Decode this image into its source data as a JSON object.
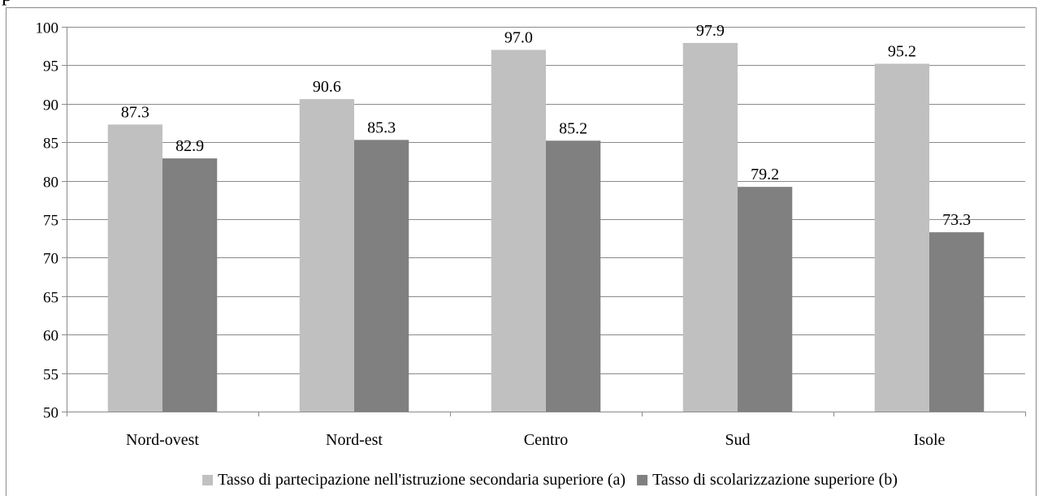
{
  "top_clipped_text": "р",
  "chart_data": {
    "type": "bar",
    "categories": [
      "Nord-ovest",
      "Nord-est",
      "Centro",
      "Sud",
      "Isole"
    ],
    "series": [
      {
        "name": "Tasso di partecipazione nell'istruzione secondaria superiore (a)",
        "values": [
          87.3,
          90.6,
          97.0,
          97.9,
          95.2
        ],
        "labels": [
          "87.3",
          "90.6",
          "97.0",
          "97.9",
          "95.2"
        ],
        "color": "#c0c0c0"
      },
      {
        "name": "Tasso di scolarizzazione superiore (b)",
        "values": [
          82.9,
          85.3,
          85.2,
          79.2,
          73.3
        ],
        "labels": [
          "82.9",
          "85.3",
          "85.2",
          "79.2",
          "73.3"
        ],
        "color": "#808080"
      }
    ],
    "yticks": [
      "50",
      "55",
      "60",
      "65",
      "70",
      "75",
      "80",
      "85",
      "90",
      "95",
      "100"
    ],
    "ylim": [
      50,
      100
    ],
    "grid": true,
    "legend_position": "bottom",
    "title": "",
    "xlabel": "",
    "ylabel": ""
  }
}
